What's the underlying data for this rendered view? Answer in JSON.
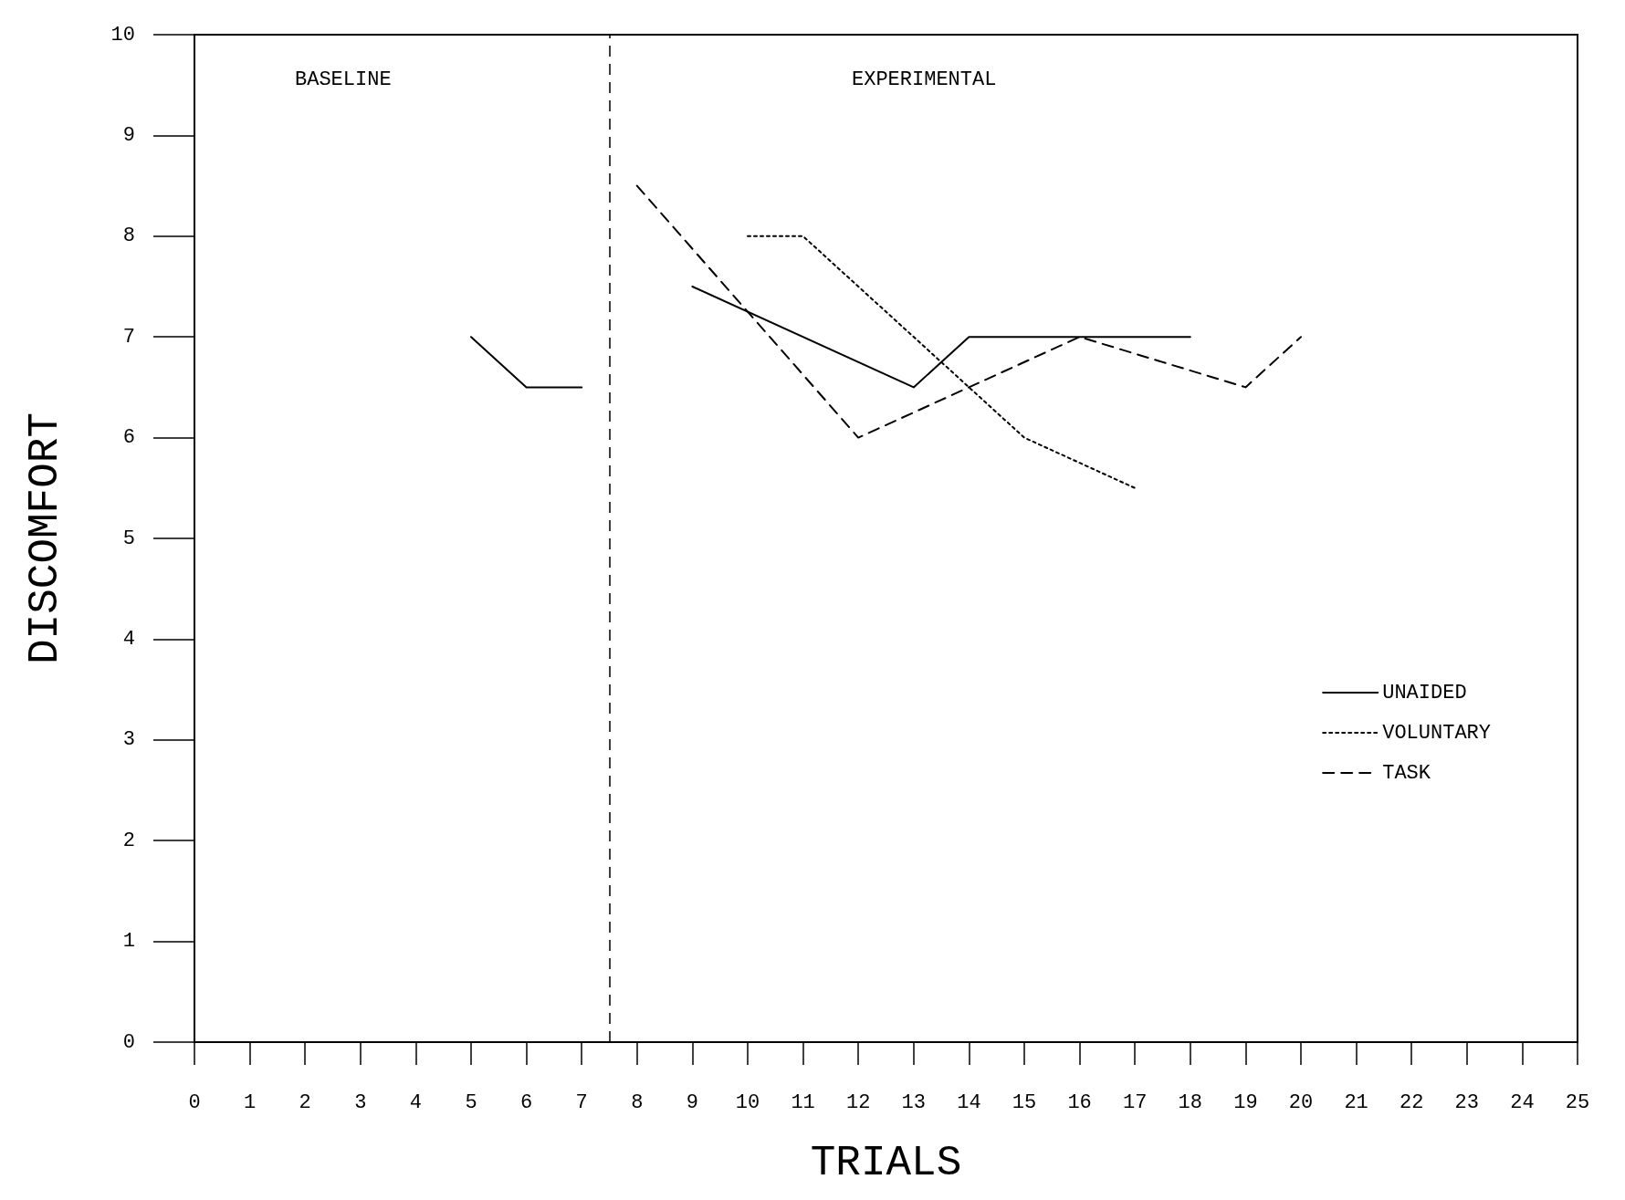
{
  "chart_data": {
    "type": "line",
    "xlabel": "TRIALS",
    "ylabel": "DISCOMFORT",
    "annotations": [
      "BASELINE",
      "EXPERIMENTAL"
    ],
    "xlim": [
      0,
      25
    ],
    "xticks": [
      0,
      1,
      2,
      3,
      4,
      5,
      6,
      7,
      8,
      9,
      10,
      11,
      12,
      13,
      14,
      15,
      16,
      17,
      18,
      19,
      20,
      21,
      22,
      23,
      24,
      25
    ],
    "ylim": [
      0,
      10
    ],
    "yticks": [
      0,
      1,
      2,
      3,
      4,
      5,
      6,
      7,
      8,
      9,
      10
    ],
    "grid": false,
    "legend": "right",
    "marker": "none",
    "ref_lines": [
      {
        "axis": "x",
        "value": 7.5,
        "line_style": "dashed",
        "color": "#000000"
      }
    ],
    "series": [
      {
        "name": "UNAIDED",
        "color": "#000000",
        "line_style": "solid",
        "x": [
          5,
          6,
          7,
          8,
          9,
          13,
          14,
          18
        ],
        "values": [
          7,
          6.5,
          6.5,
          null,
          7.5,
          6.5,
          7,
          7
        ]
      },
      {
        "name": "VOLUNTARY",
        "color": "#000000",
        "line_style": "dotted",
        "x": [
          10,
          11,
          15,
          16,
          17
        ],
        "values": [
          8,
          8,
          6,
          5.75,
          5.5
        ]
      },
      {
        "name": "TASK",
        "color": "#000000",
        "line_style": "dashed",
        "x": [
          8,
          12,
          14,
          16,
          19,
          20
        ],
        "values": [
          8.5,
          6,
          6.5,
          7,
          6.5,
          7
        ]
      }
    ]
  }
}
